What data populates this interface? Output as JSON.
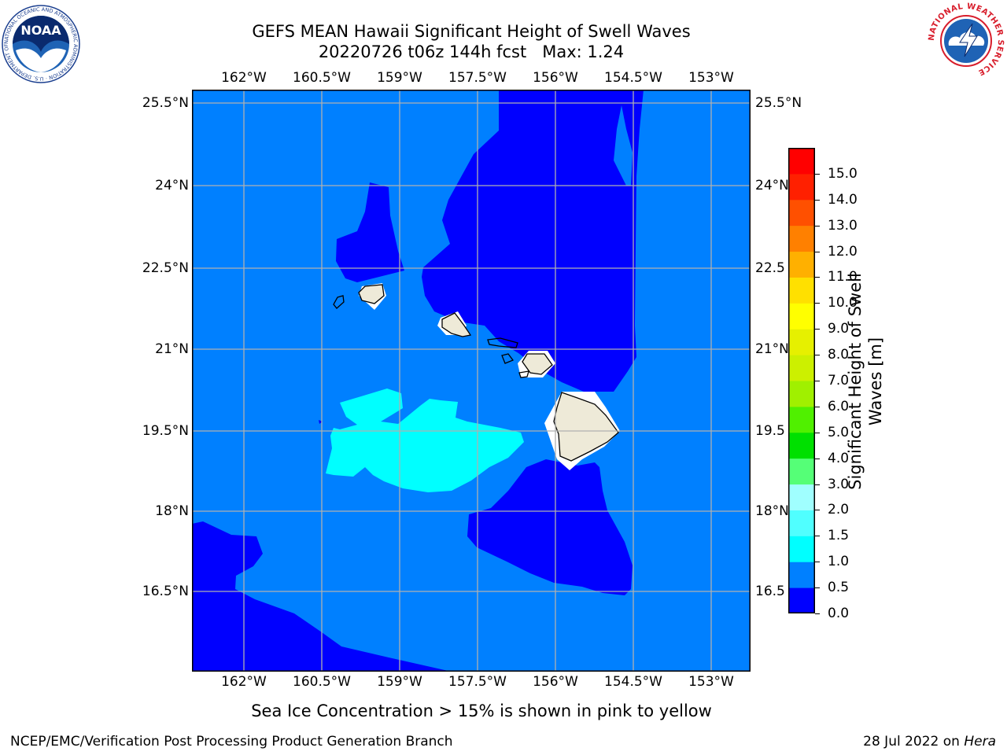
{
  "title": {
    "line1": "GEFS MEAN Hawaii Significant Height of Swell Waves",
    "line2": "20220726 t06z 144h fcst   Max: 1.24"
  },
  "logos": {
    "left": "NOAA logo",
    "left_ring_text": "NATIONAL OCEANIC AND ATMOSPHERIC ADMINISTRATION · U.S. DEPARTMENT OF COMMERCE",
    "left_center_text": "NOAA",
    "right": "National Weather Service logo",
    "right_ring_text": "NATIONAL WEATHER SERVICE"
  },
  "map": {
    "lon_ticks": [
      "162°W",
      "160.5°W",
      "159°W",
      "157.5°W",
      "156°W",
      "154.5°W",
      "153°W"
    ],
    "lat_ticks": [
      "25.5°N",
      "24°N",
      "22.5°N",
      "21°N",
      "19.5°N",
      "18°N",
      "16.5°N"
    ],
    "lat_ticks_right": [
      "25.5°N",
      "24°N",
      "22.5",
      "21°N",
      "19.5",
      "18°N",
      "16.5"
    ],
    "grid": true,
    "colors": {
      "ocean_base": "#0080ff",
      "low_swell": "#0000ff",
      "mid_swell": "#00ffff",
      "land": "#eeead8",
      "gridline": "#b0b0b0"
    }
  },
  "colorbar": {
    "label_line1": "Significant Height of Swell",
    "label_line2": "Waves [m]",
    "ticks": [
      "0.0",
      "0.5",
      "1.0",
      "1.5",
      "2.0",
      "3.0",
      "4.0",
      "5.0",
      "6.0",
      "7.0",
      "8.0",
      "9.0",
      "10.0",
      "11.0",
      "12.0",
      "13.0",
      "14.0",
      "15.0"
    ],
    "colors": [
      "#0000ff",
      "#0080ff",
      "#00ffff",
      "#50ffff",
      "#a0ffff",
      "#55ff77",
      "#00e000",
      "#50f000",
      "#a0f000",
      "#ccf000",
      "#e6f000",
      "#ffff00",
      "#ffe000",
      "#ffb000",
      "#ff8000",
      "#ff5000",
      "#ff2000",
      "#ff0000"
    ]
  },
  "note": "Sea Ice Concentration > 15% is shown in pink to yellow",
  "footer": {
    "left": "NCEP/EMC/Verification Post Processing Product Generation Branch",
    "right_prefix": "28 Jul 2022 on ",
    "right_host": "Hera"
  }
}
